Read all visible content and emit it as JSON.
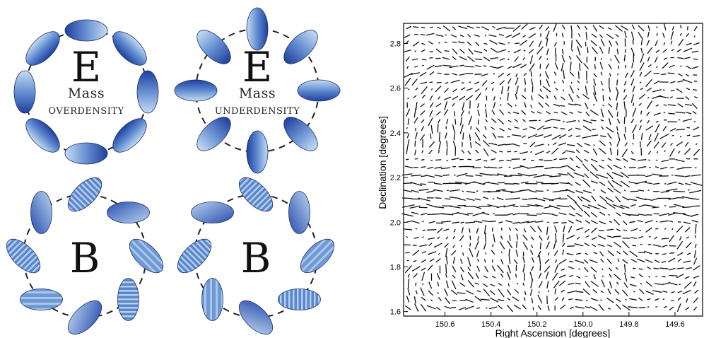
{
  "colors": {
    "dark_blue": "#1f3f9e",
    "light_blue": "#b9d4ee",
    "stripe_blue": "#8fb3de",
    "outline": "#1b2f66",
    "dash_circle": "#222222"
  },
  "panels": {
    "e_over": {
      "letter": "E",
      "line1": "Mass",
      "line2": "overdensity"
    },
    "e_under": {
      "letter": "E",
      "line1": "Mass",
      "line2": "underdensity"
    },
    "b_left": {
      "letter": "B"
    },
    "b_right": {
      "letter": "B"
    }
  },
  "shear_map": {
    "x_label": "Right Ascension [degrees]",
    "y_label": "Declination [degrees]",
    "x_ticks": [
      "150.6",
      "150.4",
      "150.2",
      "150.0",
      "149.8",
      "149.6"
    ],
    "y_ticks": [
      "2.8",
      "2.6",
      "2.4",
      "2.2",
      "2.0",
      "1.8",
      "1.6"
    ],
    "x_range": [
      150.78,
      149.48
    ],
    "y_range": [
      1.58,
      2.89
    ],
    "x_reversed": true,
    "grid": false
  }
}
